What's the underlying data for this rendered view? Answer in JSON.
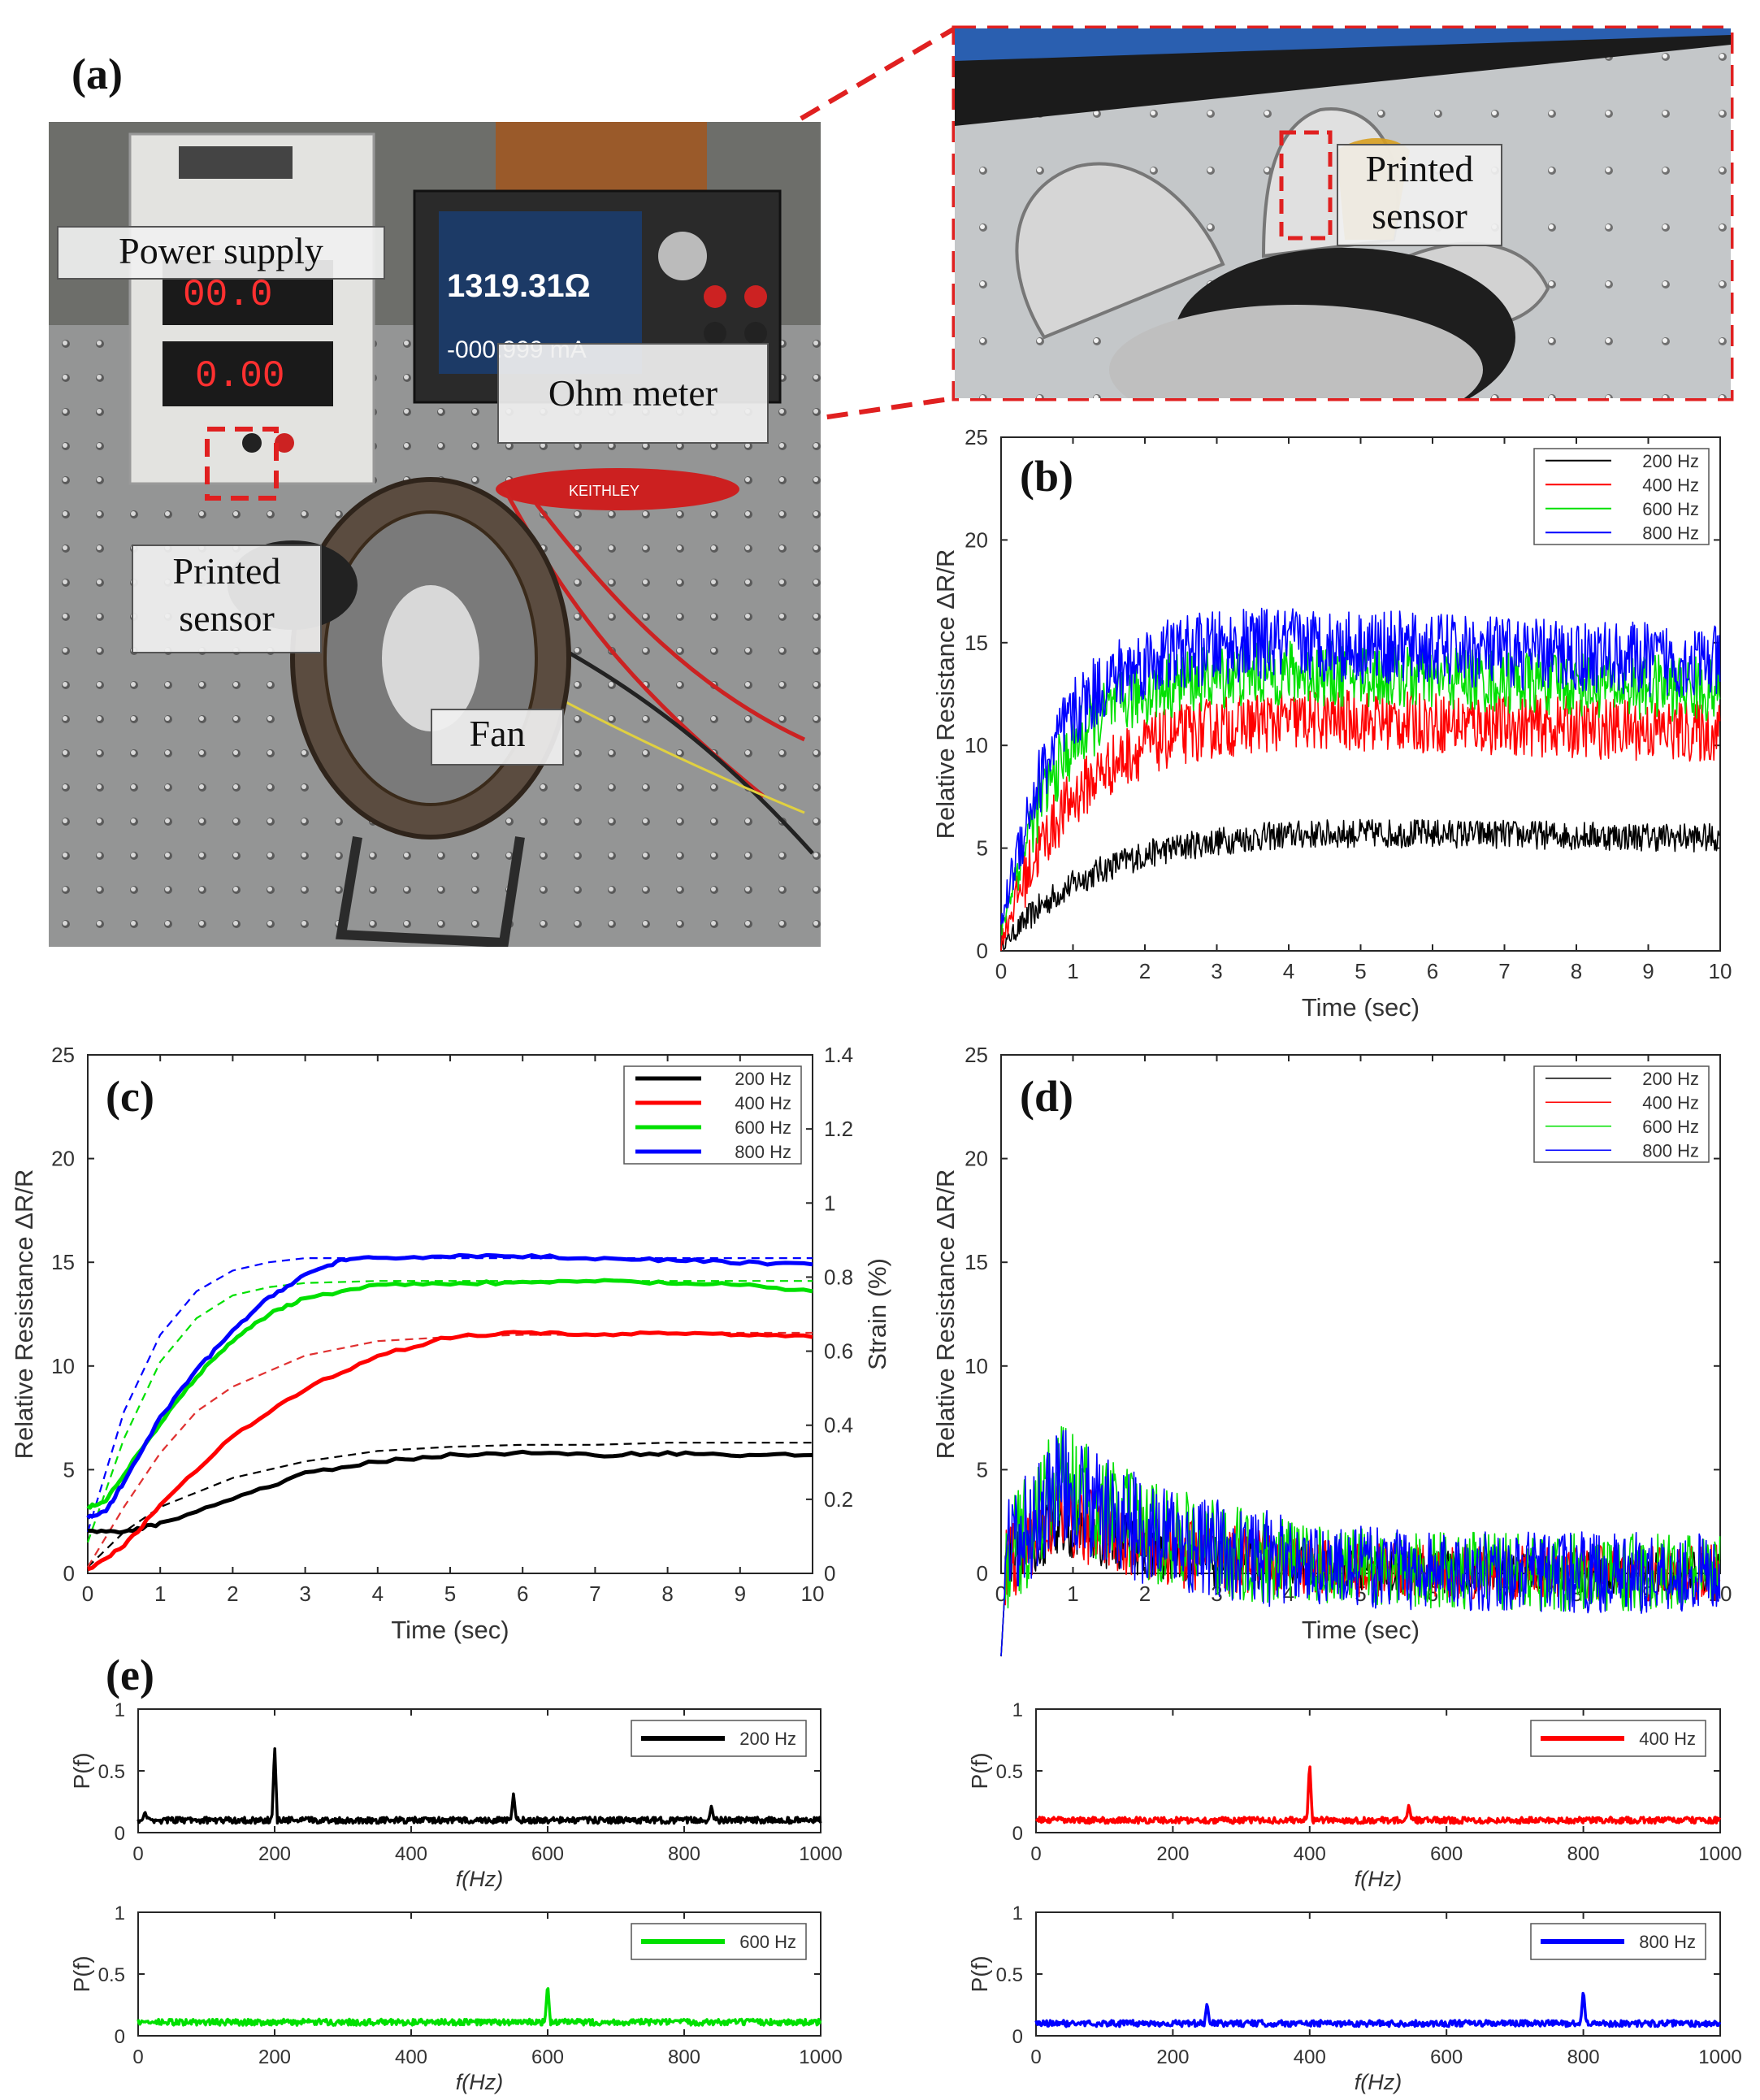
{
  "panels": {
    "a": "(a)",
    "b": "(b)",
    "c": "(c)",
    "d": "(d)",
    "e": "(e)"
  },
  "photo_callouts": {
    "power_supply": "Power supply",
    "ohm_meter": "Ohm meter",
    "printed_sensor": "Printed sensor",
    "fan": "Fan",
    "zoom_printed_sensor": "Printed sensor"
  },
  "meter_display": {
    "resistance": "1319.31Ω",
    "current": "-000.999 mA",
    "brand": "KEITHLEY"
  },
  "power_display": {
    "volt": "00.0",
    "amp": "0.00"
  },
  "colors": {
    "200 Hz": "#000000",
    "400 Hz": "#ff0000",
    "600 Hz": "#00e000",
    "800 Hz": "#0000ff",
    "dash_red": "#e03030"
  },
  "chart_data": [
    {
      "id": "b",
      "type": "line",
      "xlabel": "Time (sec)",
      "ylabel": "Relative Resistance ΔR/R",
      "xlim": [
        0,
        10
      ],
      "ylim": [
        0,
        25
      ],
      "xticks": [
        0,
        1,
        2,
        3,
        4,
        5,
        6,
        7,
        8,
        9,
        10
      ],
      "yticks": [
        0,
        5,
        10,
        15,
        20,
        25
      ],
      "legend": "top-right",
      "series": [
        {
          "name": "200 Hz",
          "model": {
            "amp": 5.9,
            "tau": 1.3,
            "start": 0.5,
            "noise": 0.7
          }
        },
        {
          "name": "400 Hz",
          "model": {
            "amp": 11.4,
            "tau": 1.0,
            "start": 1.5,
            "noise": 1.5
          }
        },
        {
          "name": "600 Hz",
          "model": {
            "amp": 13.6,
            "tau": 0.8,
            "start": 3.0,
            "noise": 1.6
          }
        },
        {
          "name": "800 Hz",
          "model": {
            "amp": 15.0,
            "tau": 0.75,
            "start": 4.0,
            "noise": 1.8
          }
        }
      ]
    },
    {
      "id": "c",
      "type": "line",
      "xlabel": "Time (sec)",
      "ylabel": "Relative Resistance ΔR/R",
      "y2label": "Strain (%)",
      "xlim": [
        0,
        10
      ],
      "ylim": [
        0,
        25
      ],
      "y2lim": [
        0,
        1.4
      ],
      "xticks": [
        0,
        1,
        2,
        3,
        4,
        5,
        6,
        7,
        8,
        9,
        10
      ],
      "yticks": [
        0,
        5,
        10,
        15,
        20,
        25
      ],
      "y2ticks": [
        0,
        0.2,
        0.4,
        0.6,
        0.8,
        1,
        1.2,
        1.4
      ],
      "legend": "top-right",
      "series": [
        {
          "name": "200 Hz",
          "x": [
            0,
            0.5,
            1,
            2,
            3,
            4,
            5,
            6,
            7,
            8,
            9,
            10
          ],
          "y": [
            2.0,
            2.0,
            2.4,
            3.6,
            4.8,
            5.4,
            5.7,
            5.8,
            5.7,
            5.8,
            5.7,
            5.7
          ]
        },
        {
          "name": "400 Hz",
          "x": [
            0,
            0.5,
            1,
            2,
            3,
            4,
            5,
            6,
            7,
            8,
            9,
            10
          ],
          "y": [
            0.2,
            1.3,
            3.3,
            6.6,
            8.9,
            10.5,
            11.4,
            11.6,
            11.5,
            11.6,
            11.5,
            11.4
          ]
        },
        {
          "name": "600 Hz",
          "x": [
            0,
            0.25,
            0.5,
            1,
            1.5,
            2,
            2.5,
            3,
            4,
            5,
            6,
            7,
            8,
            9,
            10
          ],
          "y": [
            3.2,
            3.5,
            4.8,
            7.2,
            9.5,
            11.2,
            12.5,
            13.3,
            13.9,
            14.0,
            14.0,
            14.1,
            14.0,
            13.9,
            13.6
          ]
        },
        {
          "name": "800 Hz",
          "x": [
            0,
            0.25,
            0.5,
            1,
            1.5,
            2,
            2.5,
            3,
            3.5,
            4,
            5,
            6,
            7,
            8,
            9,
            10
          ],
          "y": [
            2.7,
            3.0,
            4.4,
            7.5,
            9.8,
            11.7,
            13.3,
            14.4,
            15.1,
            15.2,
            15.3,
            15.3,
            15.2,
            15.1,
            15.0,
            14.9
          ]
        }
      ],
      "dashed": [
        {
          "color": "200 Hz",
          "x": [
            0,
            0.5,
            1,
            2,
            3,
            4,
            5,
            6,
            7,
            8,
            9,
            10
          ],
          "y": [
            0.3,
            2.0,
            3.2,
            4.6,
            5.4,
            5.9,
            6.1,
            6.2,
            6.2,
            6.3,
            6.3,
            6.3
          ]
        },
        {
          "color": "dash_red",
          "x": [
            0,
            0.5,
            1,
            1.5,
            2,
            3,
            4,
            5,
            6,
            7,
            8,
            9,
            10
          ],
          "y": [
            0.3,
            3.2,
            5.8,
            7.8,
            9.0,
            10.5,
            11.2,
            11.4,
            11.5,
            11.5,
            11.6,
            11.6,
            11.6
          ]
        },
        {
          "color": "600 Hz",
          "x": [
            0,
            0.5,
            1,
            1.5,
            2,
            2.5,
            3,
            4,
            5,
            6,
            7,
            8,
            9,
            10
          ],
          "y": [
            1.5,
            6.5,
            10.2,
            12.3,
            13.4,
            13.8,
            14.0,
            14.1,
            14.1,
            14.1,
            14.1,
            14.1,
            14.1,
            14.1
          ]
        },
        {
          "color": "800 Hz",
          "x": [
            0,
            0.5,
            1,
            1.5,
            2,
            2.5,
            3,
            4,
            5,
            6,
            7,
            8,
            9,
            10
          ],
          "y": [
            2.0,
            7.8,
            11.5,
            13.6,
            14.6,
            15.0,
            15.2,
            15.2,
            15.2,
            15.2,
            15.2,
            15.2,
            15.2,
            15.2
          ]
        }
      ]
    },
    {
      "id": "d",
      "type": "line",
      "xlabel": "Time (sec)",
      "ylabel": "Relative Resistance ΔR/R",
      "xlim": [
        0,
        10
      ],
      "ylim": [
        -4,
        25
      ],
      "yaxis_min": 0,
      "xticks": [
        0,
        1,
        2,
        3,
        4,
        5,
        6,
        7,
        8,
        9,
        10
      ],
      "yticks": [
        0,
        5,
        10,
        15,
        20,
        25
      ],
      "legend": "top-right",
      "series": [
        {
          "name": "200 Hz",
          "model": {
            "peak": 2.5,
            "noise": 1.2
          }
        },
        {
          "name": "400 Hz",
          "model": {
            "peak": 3.0,
            "noise": 1.6
          }
        },
        {
          "name": "600 Hz",
          "model": {
            "peak": 4.6,
            "noise": 2.2
          }
        },
        {
          "name": "800 Hz",
          "model": {
            "peak": 4.4,
            "noise": 2.3
          }
        }
      ]
    },
    {
      "id": "e1",
      "type": "line",
      "xlabel": "f(Hz)",
      "ylabel": "P(f)",
      "xlim": [
        0,
        1000
      ],
      "ylim": [
        0,
        1
      ],
      "xticks": [
        0,
        200,
        400,
        600,
        800,
        1000
      ],
      "yticks": [
        0,
        0.5,
        1
      ],
      "legend": "top-right",
      "series": [
        {
          "name": "200 Hz",
          "baseline": 0.1,
          "peaks": [
            [
              10,
              0.17
            ],
            [
              200,
              0.71
            ],
            [
              550,
              0.32
            ],
            [
              840,
              0.22
            ]
          ]
        }
      ]
    },
    {
      "id": "e2",
      "type": "line",
      "xlabel": "f(Hz)",
      "ylabel": "P(f)",
      "xlim": [
        0,
        1000
      ],
      "ylim": [
        0,
        1
      ],
      "xticks": [
        0,
        200,
        400,
        600,
        800,
        1000
      ],
      "yticks": [
        0,
        0.5,
        1
      ],
      "legend": "top-right",
      "series": [
        {
          "name": "400 Hz",
          "baseline": 0.1,
          "peaks": [
            [
              400,
              0.58
            ],
            [
              545,
              0.23
            ]
          ]
        }
      ]
    },
    {
      "id": "e3",
      "type": "line",
      "xlabel": "f(Hz)",
      "ylabel": "P(f)",
      "xlim": [
        0,
        1000
      ],
      "ylim": [
        0,
        1
      ],
      "xticks": [
        0,
        200,
        400,
        600,
        800,
        1000
      ],
      "yticks": [
        0,
        0.5,
        1
      ],
      "legend": "top-right",
      "series": [
        {
          "name": "600 Hz",
          "baseline": 0.11,
          "peaks": [
            [
              600,
              0.43
            ]
          ]
        }
      ]
    },
    {
      "id": "e4",
      "type": "line",
      "xlabel": "f(Hz)",
      "ylabel": "P(f)",
      "xlim": [
        0,
        1000
      ],
      "ylim": [
        0,
        1
      ],
      "xticks": [
        0,
        200,
        400,
        600,
        800,
        1000
      ],
      "yticks": [
        0,
        0.5,
        1
      ],
      "legend": "top-right",
      "series": [
        {
          "name": "800 Hz",
          "baseline": 0.1,
          "peaks": [
            [
              250,
              0.27
            ],
            [
              800,
              0.38
            ]
          ]
        }
      ]
    }
  ]
}
